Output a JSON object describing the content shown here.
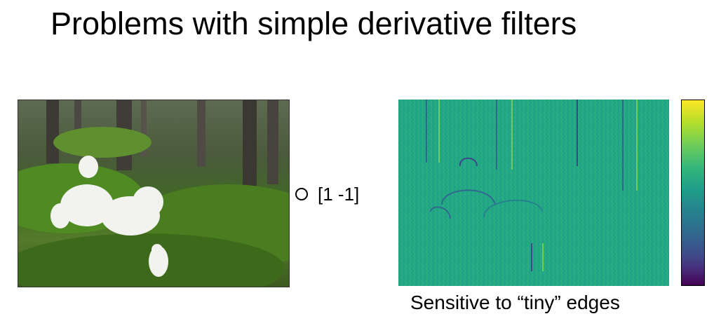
{
  "slide": {
    "title": "Problems with simple derivative filters",
    "operator_label": "[1 -1]",
    "caption": "Sensitive to “tiny” edges"
  },
  "colors": {
    "colormap_top": "#fde725",
    "colormap_mid": "#21918c",
    "colormap_bottom": "#440154",
    "edge_background": "#22a884"
  },
  "icons": {
    "operator": "convolution-operator-icon"
  }
}
